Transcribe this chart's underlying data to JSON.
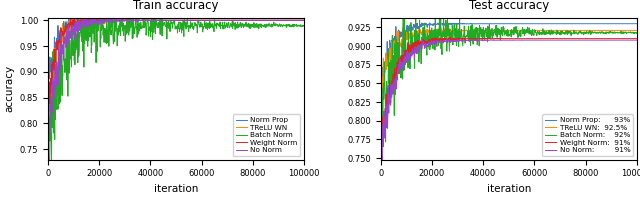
{
  "title_train": "Train accuracy",
  "title_test": "Test accuracy",
  "xlabel": "iteration",
  "ylabel": "accuracy",
  "xlim": [
    0,
    100000
  ],
  "train_ylim": [
    0.73,
    1.005
  ],
  "test_ylim": [
    0.748,
    0.938
  ],
  "n_points": 800,
  "colors": {
    "norm_prop": "#4477CC",
    "trelu_wn": "#FF8800",
    "batch_norm": "#22AA22",
    "weight_norm": "#DD2222",
    "no_norm": "#9944CC"
  },
  "legend_train": [
    "Norm Prop",
    "TReLU WN",
    "Batch Norm",
    "Weight Norm",
    "No Norm"
  ],
  "legend_test": [
    "Norm Prop:      93%",
    "TReLU WN:  92.5%",
    "Batch Norm:    92%",
    "Weight Norm:  91%",
    "No Norm:         91%"
  ],
  "train_yticks": [
    0.75,
    0.8,
    0.85,
    0.9,
    0.95,
    1.0
  ],
  "test_yticks": [
    0.75,
    0.775,
    0.8,
    0.825,
    0.85,
    0.875,
    0.9,
    0.925
  ],
  "xticks": [
    0,
    20000,
    40000,
    60000,
    80000,
    100000
  ],
  "xtick_labels": [
    "0",
    "20000",
    "40000",
    "60000",
    "80000",
    "100000"
  ],
  "seed": 42,
  "linewidth": 0.7
}
